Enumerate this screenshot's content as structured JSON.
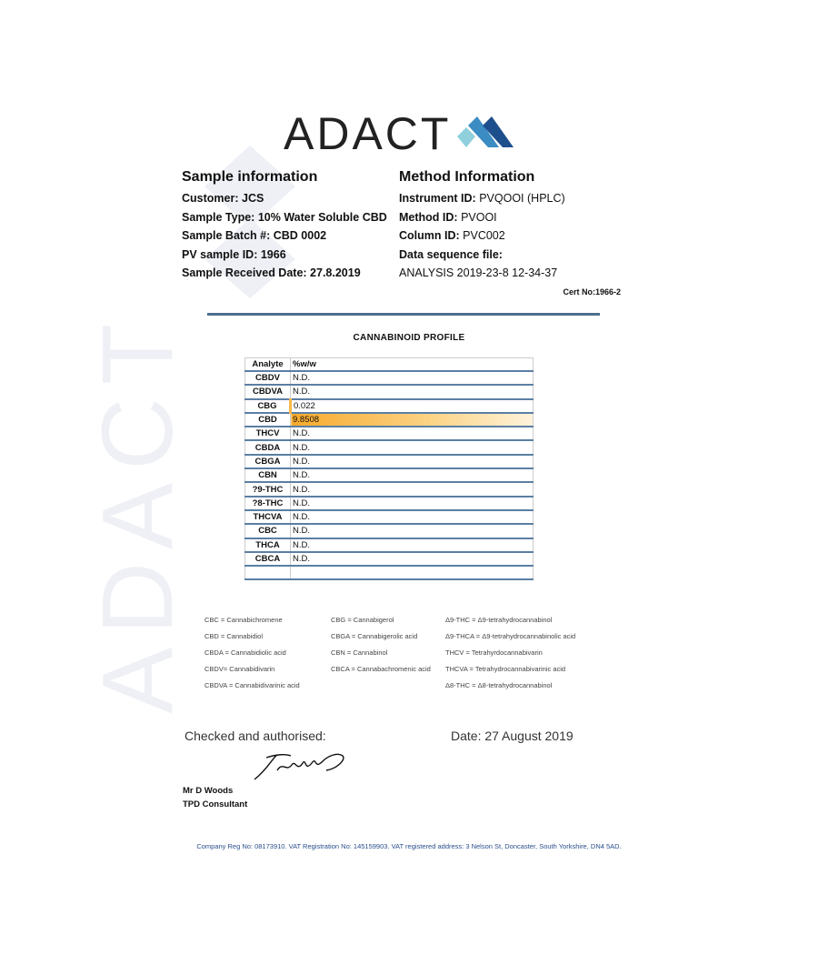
{
  "logo": {
    "text": "ADACT",
    "colors": [
      "#8fd0dc",
      "#3c8cc4",
      "#1d4f8c"
    ]
  },
  "sample": {
    "heading": "Sample information",
    "rows": [
      {
        "label": "Customer:",
        "value": "JCS"
      },
      {
        "label": "Sample Type:",
        "value": "10% Water Soluble CBD"
      },
      {
        "label": "Sample Batch #:",
        "value": "CBD 0002"
      },
      {
        "label": "PV sample ID:",
        "value": "1966"
      },
      {
        "label": "Sample Received Date:",
        "value": "27.8.2019"
      }
    ]
  },
  "method": {
    "heading": "Method Information",
    "rows": [
      {
        "label": "Instrument ID:",
        "value": "PVQOOI (HPLC)"
      },
      {
        "label": "Method ID:",
        "value": "PVOOI"
      },
      {
        "label": "Column ID:",
        "value": "PVC002"
      },
      {
        "label": "Data sequence file:",
        "value": ""
      },
      {
        "label": "",
        "value": "ANALYSIS 2019-23-8 12-34-37"
      }
    ]
  },
  "cert_no": "Cert No:1966-2",
  "profile": {
    "title": "CANNABINOID  PROFILE",
    "headers": [
      "Analyte",
      "%w/w"
    ],
    "rows": [
      [
        "CBDV",
        "N.D."
      ],
      [
        "CBDVA",
        "N.D."
      ],
      [
        "CBG",
        "0.022"
      ],
      [
        "CBD",
        "9.8508"
      ],
      [
        "THCV",
        "N.D."
      ],
      [
        "CBDA",
        "N.D."
      ],
      [
        "CBGA",
        "N.D."
      ],
      [
        "CBN",
        "N.D."
      ],
      [
        "?9-THC",
        "N.D."
      ],
      [
        "?8-THC",
        "N.D."
      ],
      [
        "THCVA",
        "N.D."
      ],
      [
        "CBC",
        "N.D."
      ],
      [
        "THCA",
        "N.D."
      ],
      [
        "CBCA",
        "N.D."
      ],
      [
        "",
        ""
      ]
    ],
    "highlight_color": "#f7a92b"
  },
  "legend": [
    [
      "CBC = Cannabichromene",
      "CBD = Cannabidiol",
      "CBDA = Cannabidiolic acid",
      "CBDV= Cannabidivarin",
      "CBDVA = Cannabidivarinic acid"
    ],
    [
      "CBG = Cannabigerol",
      "CBGA = Cannabigerolic acid",
      "CBN = Cannabinol",
      "CBCA = Cannabachromenic acid"
    ],
    [
      "Δ9-THC = Δ9-tetrahydrocannabinol",
      "Δ9-THCA  = Δ9-tetrahydrocannabinolic acid",
      "THCV = Tetrahyrdocannabivarin",
      "THCVA  = Tetrahydrocannabivarinic acid",
      "Δ8-THC = Δ8-tetrahydrocannabinol"
    ]
  ],
  "signoff": {
    "checked": "Checked and authorised:",
    "date": "Date: 27 August 2019",
    "name": "Mr D Woods",
    "role": "TPD Consultant"
  },
  "footer": "Company Reg No: 08173910. VAT Registration No: 145159903. VAT registered address: 3 Nelson St, Doncaster, South Yorkshire, DN4 5AD."
}
